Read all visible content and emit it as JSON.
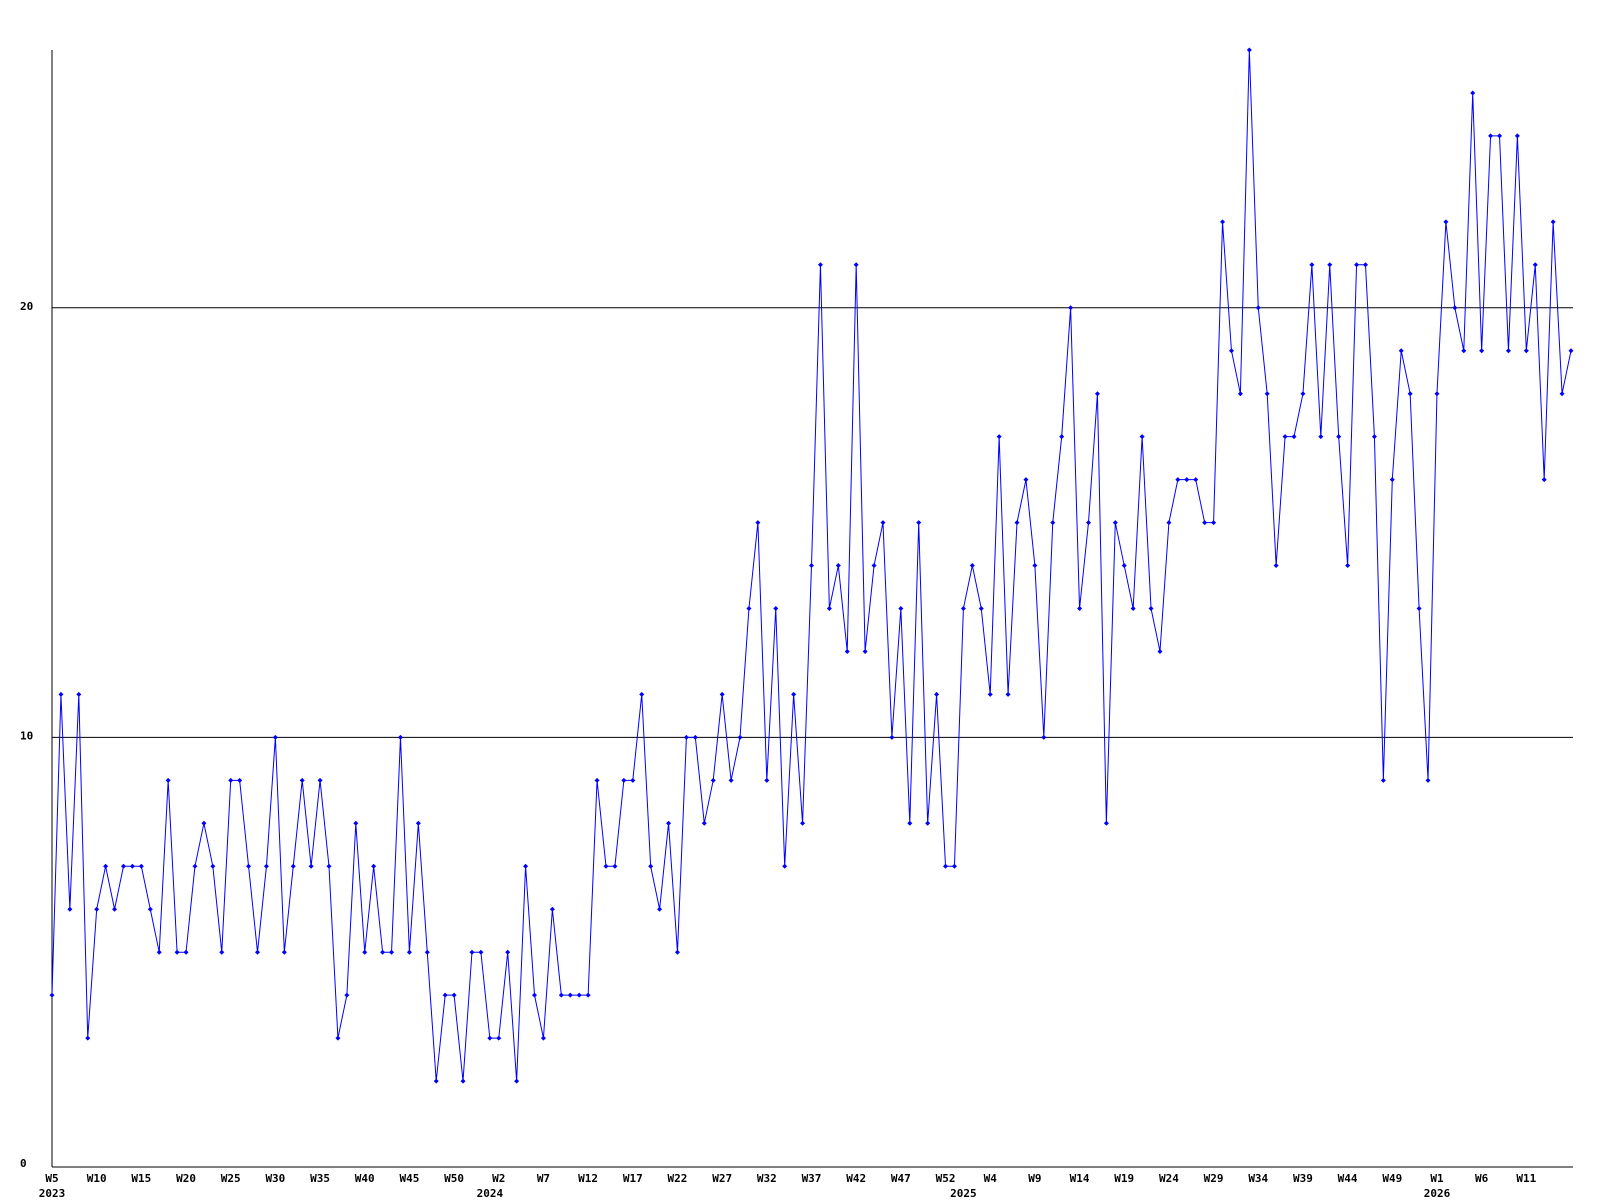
{
  "chart_data": {
    "type": "line",
    "color": "#0000ff",
    "categories": [
      "W5",
      null,
      null,
      null,
      null,
      "W10",
      null,
      null,
      null,
      null,
      "W15",
      null,
      null,
      null,
      null,
      "W20",
      null,
      null,
      null,
      null,
      "W25",
      null,
      null,
      null,
      null,
      "W30",
      null,
      null,
      null,
      null,
      "W35",
      null,
      null,
      null,
      null,
      "W40",
      null,
      null,
      null,
      null,
      "W45",
      null,
      null,
      null,
      null,
      "W50",
      null,
      null,
      null,
      null,
      "W2",
      null,
      null,
      null,
      null,
      "W7",
      null,
      null,
      null,
      null,
      "W12",
      null,
      null,
      null,
      null,
      "W17",
      null,
      null,
      null,
      null,
      "W22",
      null,
      null,
      null,
      null,
      "W27",
      null,
      null,
      null,
      null,
      "W32",
      null,
      null,
      null,
      null,
      "W37",
      null,
      null,
      null,
      null,
      "W42",
      null,
      null,
      null,
      null,
      "W47",
      null,
      null,
      null,
      null,
      "W52",
      null,
      null,
      null,
      null,
      "W4",
      null,
      null,
      null,
      null,
      "W9",
      null,
      null,
      null,
      null,
      "W14",
      null,
      null,
      null,
      null,
      "W19",
      null,
      null,
      null,
      null,
      "W24",
      null,
      null,
      null,
      null,
      "W29",
      null,
      null,
      null,
      null,
      "W34",
      null,
      null,
      null,
      null,
      "W39",
      null,
      null,
      null,
      null,
      "W44",
      null,
      null,
      null,
      null,
      "W49",
      null,
      null,
      null,
      null,
      "W1",
      null,
      null,
      null,
      null,
      "W6",
      null,
      null,
      null,
      null,
      "W11",
      null,
      null,
      null,
      null,
      null
    ],
    "x_groups": [
      {
        "label": "2023",
        "index": 0
      },
      {
        "label": "2024",
        "index": 49
      },
      {
        "label": "2025",
        "index": 102
      },
      {
        "label": "2026",
        "index": 155
      }
    ],
    "values": [
      4,
      11,
      6,
      11,
      3,
      6,
      7,
      6,
      7,
      7,
      7,
      6,
      5,
      9,
      5,
      5,
      7,
      8,
      7,
      5,
      9,
      9,
      7,
      5,
      7,
      10,
      5,
      7,
      9,
      7,
      9,
      7,
      3,
      4,
      8,
      5,
      7,
      5,
      5,
      10,
      5,
      8,
      5,
      2,
      4,
      4,
      2,
      5,
      5,
      3,
      3,
      5,
      2,
      7,
      4,
      3,
      6,
      4,
      4,
      4,
      4,
      9,
      7,
      7,
      9,
      9,
      11,
      7,
      6,
      8,
      5,
      10,
      10,
      8,
      9,
      11,
      9,
      10,
      13,
      15,
      9,
      13,
      7,
      11,
      8,
      14,
      21,
      13,
      14,
      12,
      21,
      12,
      14,
      15,
      10,
      13,
      8,
      15,
      8,
      11,
      7,
      7,
      13,
      14,
      13,
      11,
      17,
      11,
      15,
      16,
      14,
      10,
      15,
      17,
      20,
      13,
      15,
      18,
      8,
      15,
      14,
      13,
      17,
      13,
      12,
      15,
      16,
      16,
      16,
      15,
      15,
      22,
      19,
      18,
      26,
      20,
      18,
      14,
      17,
      17,
      18,
      21,
      17,
      21,
      17,
      14,
      21,
      21,
      17,
      9,
      16,
      19,
      18,
      13,
      9,
      18,
      22,
      20,
      19,
      25,
      19,
      24,
      24,
      19,
      24,
      19,
      21,
      16,
      22,
      18,
      19
    ],
    "ylim": [
      0,
      26
    ],
    "yticks": [
      0,
      10,
      20
    ],
    "grid": true
  }
}
